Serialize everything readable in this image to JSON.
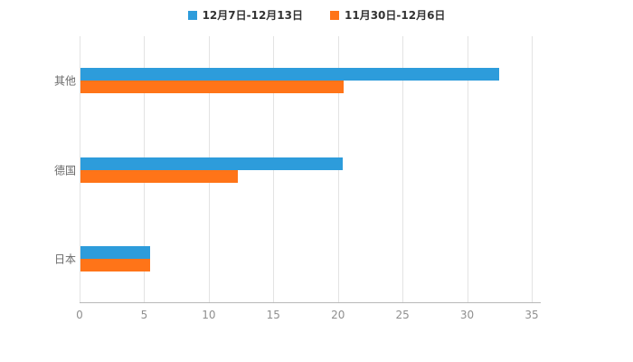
{
  "chart_data": {
    "type": "bar",
    "orientation": "horizontal",
    "title": "",
    "categories": [
      "其他",
      "德国",
      "日本"
    ],
    "series": [
      {
        "name": "12月7日-12月13日",
        "color": "#2D9CDB",
        "values": [
          32.4,
          20.3,
          5.4
        ]
      },
      {
        "name": "11月30日-12月6日",
        "color": "#FF7418",
        "values": [
          20.4,
          12.2,
          5.4
        ]
      }
    ],
    "xlabel": "",
    "ylabel": "",
    "xlim": [
      0,
      35
    ],
    "xticks": [
      0,
      5,
      10,
      15,
      20,
      25,
      30,
      35
    ],
    "grid": true,
    "grid_color": "#e3e3e3",
    "axis_color": "#b8b8b8",
    "tick_label_color": "#8f8f8f",
    "category_label_color": "#6b6b6b",
    "legend_position": "top",
    "background_color": "#ffffff"
  }
}
